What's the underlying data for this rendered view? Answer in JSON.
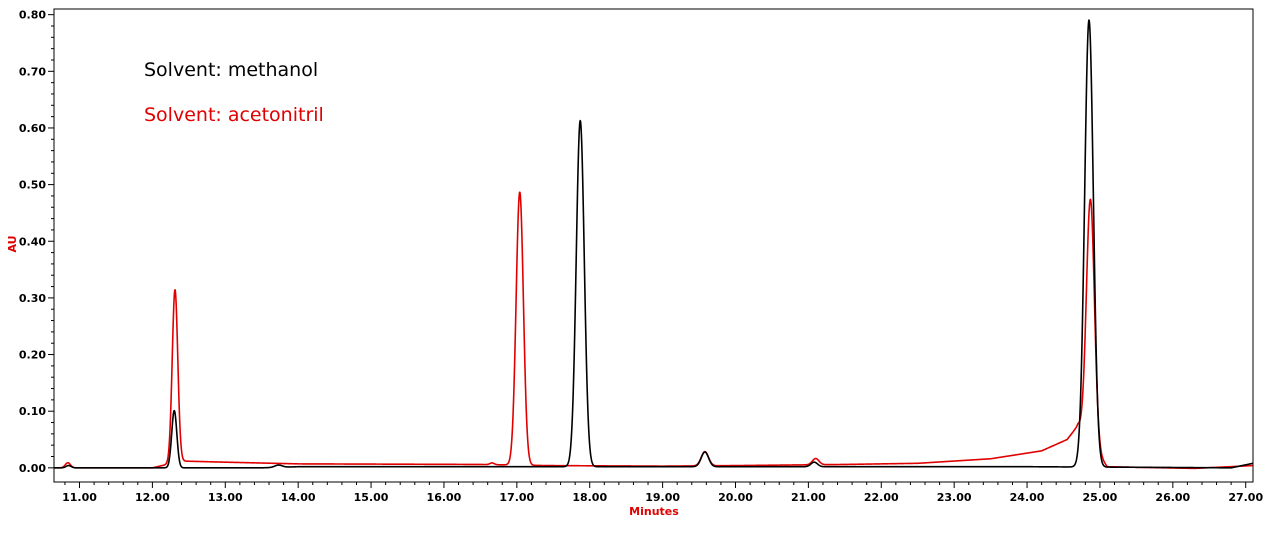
{
  "chart_data": {
    "type": "line",
    "xlabel": "Minutes",
    "ylabel": "AU",
    "xlim": [
      10.65,
      27.1
    ],
    "ylim": [
      -0.025,
      0.81
    ],
    "x_ticks": [
      "11.00",
      "12.00",
      "13.00",
      "14.00",
      "15.00",
      "16.00",
      "17.00",
      "18.00",
      "19.00",
      "20.00",
      "21.00",
      "22.00",
      "23.00",
      "24.00",
      "25.00",
      "26.00",
      "27.00"
    ],
    "y_ticks": [
      "0.00",
      "0.10",
      "0.20",
      "0.30",
      "0.40",
      "0.50",
      "0.60",
      "0.70",
      "0.80"
    ],
    "grid": false,
    "legend_position": "top-left",
    "axis_label_color": "#e00000",
    "series": [
      {
        "name": "Solvent: methanol",
        "color": "#000000",
        "baseline": [
          [
            10.65,
            0.0
          ],
          [
            13.5,
            0.0
          ],
          [
            14.0,
            0.002
          ],
          [
            16.0,
            0.002
          ],
          [
            18.5,
            0.002
          ],
          [
            24.0,
            0.002
          ],
          [
            25.5,
            0.001
          ],
          [
            26.8,
            0.0
          ],
          [
            27.1,
            0.008
          ]
        ],
        "peaks": [
          {
            "x": 10.85,
            "height": 0.004,
            "width": 0.035
          },
          {
            "x": 12.3,
            "height": 0.101,
            "width": 0.035
          },
          {
            "x": 13.73,
            "height": 0.004,
            "width": 0.05
          },
          {
            "x": 17.87,
            "height": 0.611,
            "width": 0.055
          },
          {
            "x": 19.58,
            "height": 0.026,
            "width": 0.05
          },
          {
            "x": 21.08,
            "height": 0.008,
            "width": 0.045
          },
          {
            "x": 24.85,
            "height": 0.789,
            "width": 0.06
          }
        ]
      },
      {
        "name": "Solvent: acetonitril",
        "color": "#e00000",
        "baseline": [
          [
            10.65,
            0.0
          ],
          [
            12.0,
            0.0
          ],
          [
            12.4,
            0.012
          ],
          [
            13.0,
            0.01
          ],
          [
            14.0,
            0.007
          ],
          [
            16.5,
            0.006
          ],
          [
            17.4,
            0.004
          ],
          [
            19.0,
            0.003
          ],
          [
            20.0,
            0.004
          ],
          [
            21.5,
            0.006
          ],
          [
            22.5,
            0.008
          ],
          [
            23.5,
            0.016
          ],
          [
            24.2,
            0.03
          ],
          [
            24.55,
            0.05
          ],
          [
            24.7,
            0.075
          ],
          [
            25.1,
            0.002
          ],
          [
            25.5,
            0.001
          ],
          [
            26.3,
            -0.001
          ],
          [
            27.1,
            0.004
          ]
        ],
        "peaks": [
          {
            "x": 10.84,
            "height": 0.009,
            "width": 0.035
          },
          {
            "x": 12.31,
            "height": 0.305,
            "width": 0.038
          },
          {
            "x": 16.66,
            "height": 0.003,
            "width": 0.03
          },
          {
            "x": 17.04,
            "height": 0.482,
            "width": 0.05
          },
          {
            "x": 19.58,
            "height": 0.025,
            "width": 0.05
          },
          {
            "x": 21.1,
            "height": 0.011,
            "width": 0.045
          },
          {
            "x": 24.87,
            "height": 0.43,
            "width": 0.055
          }
        ]
      }
    ]
  }
}
